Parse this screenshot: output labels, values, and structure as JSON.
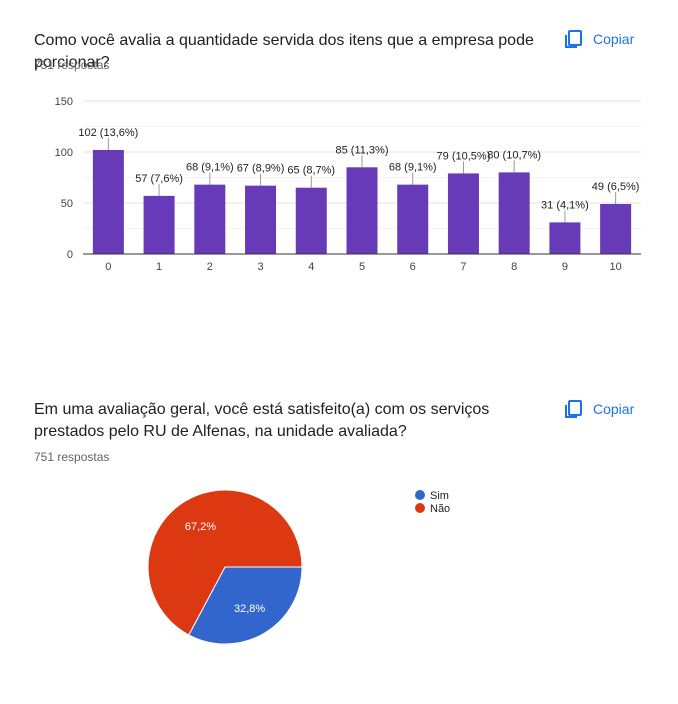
{
  "charts": [
    {
      "question": "Como você avalia a quantidade servida dos itens que a empresa pode porcionar?",
      "responses": "751 respostas",
      "copy_label": "Copiar",
      "icon": "copy-icon"
    },
    {
      "question": "Em uma avaliação geral, você está satisfeito(a) com os serviços prestados pelo RU de Alfenas, na unidade avaliada?",
      "responses": "751 respostas",
      "copy_label": "Copiar",
      "icon": "copy-icon"
    }
  ],
  "chart_data": [
    {
      "type": "bar",
      "categories": [
        "0",
        "1",
        "2",
        "3",
        "4",
        "5",
        "6",
        "7",
        "8",
        "9",
        "10"
      ],
      "values": [
        102,
        57,
        68,
        67,
        65,
        85,
        68,
        79,
        80,
        31,
        49
      ],
      "data_labels": [
        "102 (13,6%)",
        "57 (7,6%)",
        "68 (9,1%)",
        "67 (8,9%)",
        "65 (8,7%)",
        "85 (11,3%)",
        "68 (9,1%)",
        "79 (10,5%)",
        "80 (10,7%)",
        "31 (4,1%)",
        "49 (6,5%)"
      ],
      "ylim": [
        0,
        150
      ],
      "yticks": [
        0,
        50,
        100,
        150
      ],
      "bar_color": "#673ab7",
      "grid": true
    },
    {
      "type": "pie",
      "labels": [
        "Sim",
        "Não"
      ],
      "values": [
        32.8,
        67.2
      ],
      "slice_labels": [
        "32,8%",
        "67,2%"
      ],
      "colors": [
        "#3366cc",
        "#dc3912"
      ],
      "legend": "right"
    }
  ]
}
